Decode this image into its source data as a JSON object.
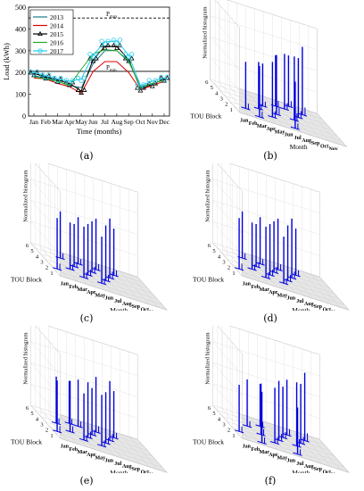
{
  "captions": [
    "(a)",
    "(b)",
    "(c)",
    "(d)",
    "(e)",
    "(f)"
  ],
  "chart_data": [
    {
      "type": "line",
      "panel": "a",
      "title": "",
      "xlabel": "Time (months)",
      "ylabel": "Load (kWh)",
      "ylim": [
        0,
        500
      ],
      "yticks": [
        "0",
        "100",
        "200",
        "300",
        "400",
        "500"
      ],
      "categories": [
        "Jan",
        "Feb",
        "Mar",
        "Apr",
        "May",
        "Jun",
        "Jul",
        "Aug",
        "Sep",
        "Oct",
        "Nov",
        "Dec"
      ],
      "grid": false,
      "legend_placement": "top-left",
      "reference_lines": [
        {
          "label": "P",
          "sub": "max",
          "value": 450
        },
        {
          "label": "P",
          "sub": "min",
          "value": 205
        }
      ],
      "series": [
        {
          "name": "2013",
          "color": "#1a7a8a",
          "marker": "none",
          "values": [
            185,
            175,
            160,
            140,
            130,
            240,
            300,
            300,
            250,
            135,
            150,
            165
          ]
        },
        {
          "name": "2014",
          "color": "#e00000",
          "marker": "none",
          "values": [
            175,
            170,
            150,
            135,
            105,
            205,
            250,
            250,
            200,
            120,
            140,
            160
          ]
        },
        {
          "name": "2015",
          "color": "#000000",
          "marker": "triangle",
          "values": [
            195,
            180,
            165,
            150,
            115,
            260,
            320,
            320,
            260,
            125,
            145,
            170
          ]
        },
        {
          "name": "2016",
          "color": "#22aa22",
          "marker": "none",
          "values": [
            180,
            170,
            160,
            140,
            215,
            285,
            305,
            300,
            255,
            130,
            150,
            165
          ]
        },
        {
          "name": "2017",
          "color": "#22ccee",
          "marker": "circle",
          "values": [
            200,
            185,
            170,
            160,
            170,
            280,
            340,
            345,
            280,
            140,
            160,
            175
          ]
        }
      ]
    },
    {
      "type": "bar3d",
      "panel": "b",
      "zlabel": "Normalized histogram",
      "xlabel": "Month",
      "ylabel": "TOU Block",
      "months": [
        "Jan",
        "Feb",
        "Mar",
        "Apr",
        "May",
        "Jun",
        "Jul",
        "Aug",
        "Sep",
        "Oct",
        "Nov",
        "Dec"
      ],
      "blocks": [
        "1",
        "2",
        "3",
        "4",
        "5",
        "6"
      ],
      "color": "#0000dd",
      "bars": [
        [
          2,
          2,
          0.55
        ],
        [
          3,
          1,
          0.6
        ],
        [
          4,
          3,
          0.55
        ],
        [
          5,
          2,
          0.65
        ],
        [
          5,
          4,
          0.5
        ],
        [
          6,
          3,
          0.7
        ],
        [
          7,
          1,
          0.55
        ],
        [
          7,
          5,
          0.6
        ],
        [
          8,
          3,
          0.75
        ],
        [
          8,
          5,
          0.65
        ],
        [
          9,
          4,
          0.7
        ],
        [
          9,
          6,
          0.6
        ],
        [
          10,
          5,
          0.8
        ]
      ]
    },
    {
      "type": "bar3d",
      "panel": "c",
      "zlabel": "Normalized histogram",
      "xlabel": "Month",
      "ylabel": "TOU Block",
      "months": [
        "Jan",
        "Feb",
        "Mar",
        "Apr",
        "May",
        "Jun",
        "Jul",
        "Aug",
        "Sep",
        "Oct",
        "Nov",
        "Dec"
      ],
      "blocks": [
        "1",
        "2",
        "3",
        "4",
        "5",
        "6"
      ],
      "color": "#0000dd",
      "bars": [
        [
          1,
          2,
          0.6
        ],
        [
          3,
          3,
          0.55
        ],
        [
          3,
          5,
          0.55
        ],
        [
          4,
          2,
          0.6
        ],
        [
          4,
          4,
          0.5
        ],
        [
          5,
          3,
          0.6
        ],
        [
          5,
          5,
          0.55
        ],
        [
          6,
          2,
          0.55
        ],
        [
          6,
          4,
          0.6
        ],
        [
          7,
          3,
          0.65
        ],
        [
          7,
          5,
          0.6
        ],
        [
          8,
          4,
          0.7
        ],
        [
          9,
          5,
          0.55
        ]
      ]
    },
    {
      "type": "bar3d",
      "panel": "d",
      "zlabel": "Normalized histogram",
      "xlabel": "Month",
      "ylabel": "TOU Block",
      "months": [
        "Jan",
        "Feb",
        "Mar",
        "Apr",
        "May",
        "Jun",
        "Jul",
        "Aug",
        "Sep",
        "Oct",
        "Nov",
        "Dec"
      ],
      "blocks": [
        "1",
        "2",
        "3",
        "4",
        "5",
        "6"
      ],
      "color": "#0000dd",
      "bars": [
        [
          1,
          2,
          0.6
        ],
        [
          3,
          3,
          0.55
        ],
        [
          3,
          5,
          0.55
        ],
        [
          4,
          2,
          0.6
        ],
        [
          4,
          4,
          0.5
        ],
        [
          5,
          3,
          0.6
        ],
        [
          5,
          5,
          0.55
        ],
        [
          6,
          2,
          0.55
        ],
        [
          6,
          4,
          0.6
        ],
        [
          7,
          3,
          0.65
        ],
        [
          7,
          5,
          0.6
        ],
        [
          8,
          4,
          0.7
        ],
        [
          9,
          5,
          0.55
        ]
      ]
    },
    {
      "type": "bar3d",
      "panel": "e",
      "zlabel": "Normalized histogram",
      "xlabel": "Month",
      "ylabel": "TOU Block",
      "months": [
        "Jan",
        "Feb",
        "Mar",
        "Apr",
        "May",
        "Jun",
        "Jul",
        "Aug",
        "Sep",
        "Oct",
        "Nov",
        "Dec"
      ],
      "blocks": [
        "1",
        "2",
        "3",
        "4",
        "5",
        "6"
      ],
      "color": "#0000dd",
      "bars": [
        [
          1,
          2,
          0.6
        ],
        [
          2,
          4,
          0.55
        ],
        [
          3,
          3,
          0.6
        ],
        [
          4,
          2,
          0.55
        ],
        [
          4,
          5,
          0.5
        ],
        [
          5,
          3,
          0.65
        ],
        [
          5,
          5,
          0.55
        ],
        [
          6,
          2,
          0.6
        ],
        [
          6,
          4,
          0.55
        ],
        [
          7,
          3,
          0.6
        ],
        [
          7,
          5,
          0.65
        ],
        [
          8,
          4,
          0.7
        ],
        [
          9,
          5,
          0.55
        ]
      ]
    },
    {
      "type": "bar3d",
      "panel": "f",
      "zlabel": "Normalized histogram",
      "xlabel": "Month",
      "ylabel": "TOU Block",
      "months": [
        "Jan",
        "Feb",
        "Mar",
        "Apr",
        "May",
        "Jun",
        "Jul",
        "Aug",
        "Sep",
        "Oct",
        "Nov",
        "Dec"
      ],
      "blocks": [
        "1",
        "2",
        "3",
        "4",
        "5",
        "6"
      ],
      "color": "#0000dd",
      "bars": [
        [
          1,
          2,
          0.55
        ],
        [
          3,
          1,
          0.6
        ],
        [
          3,
          4,
          0.55
        ],
        [
          4,
          3,
          0.6
        ],
        [
          5,
          2,
          0.65
        ],
        [
          5,
          5,
          0.5
        ],
        [
          6,
          3,
          0.7
        ],
        [
          7,
          1,
          0.55
        ],
        [
          7,
          4,
          0.6
        ],
        [
          8,
          3,
          0.75
        ],
        [
          8,
          5,
          0.65
        ],
        [
          9,
          4,
          0.7
        ],
        [
          10,
          5,
          0.8
        ]
      ]
    }
  ]
}
